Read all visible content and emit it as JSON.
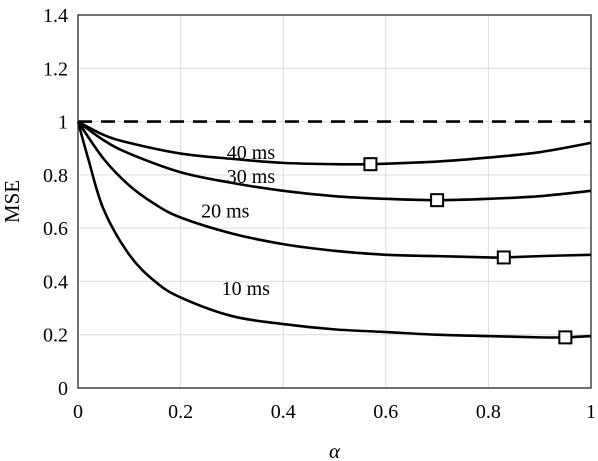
{
  "chart_data": {
    "type": "line",
    "xlabel": "α",
    "ylabel": "MSE",
    "xlim": [
      0,
      1
    ],
    "ylim": [
      0,
      1.4
    ],
    "x_ticks": [
      "0",
      "0.2",
      "0.4",
      "0.6",
      "0.8",
      "1"
    ],
    "y_ticks": [
      "0",
      "0.2",
      "0.4",
      "0.6",
      "0.8",
      "1",
      "1.2",
      "1.4"
    ],
    "grid": true,
    "reference_line": {
      "y": 1,
      "style": "dashed"
    },
    "series": [
      {
        "name": "10 ms",
        "x": [
          0,
          0.02,
          0.05,
          0.1,
          0.15,
          0.2,
          0.3,
          0.4,
          0.5,
          0.6,
          0.7,
          0.8,
          0.9,
          0.95,
          1.0
        ],
        "y": [
          1.0,
          0.86,
          0.67,
          0.5,
          0.4,
          0.34,
          0.27,
          0.24,
          0.22,
          0.21,
          0.2,
          0.195,
          0.19,
          0.19,
          0.195
        ],
        "label_at": [
          0.28,
          0.35
        ],
        "min_marker": [
          0.95,
          0.19
        ]
      },
      {
        "name": "20 ms",
        "x": [
          0,
          0.05,
          0.1,
          0.15,
          0.2,
          0.3,
          0.4,
          0.5,
          0.6,
          0.7,
          0.8,
          0.83,
          0.9,
          1.0
        ],
        "y": [
          1.0,
          0.86,
          0.76,
          0.69,
          0.64,
          0.58,
          0.54,
          0.515,
          0.5,
          0.495,
          0.49,
          0.49,
          0.495,
          0.5
        ],
        "label_at": [
          0.24,
          0.64
        ],
        "min_marker": [
          0.83,
          0.49
        ]
      },
      {
        "name": "30 ms",
        "x": [
          0,
          0.05,
          0.1,
          0.2,
          0.3,
          0.4,
          0.5,
          0.6,
          0.7,
          0.8,
          0.9,
          1.0
        ],
        "y": [
          1.0,
          0.93,
          0.88,
          0.81,
          0.77,
          0.74,
          0.72,
          0.71,
          0.705,
          0.71,
          0.72,
          0.74
        ],
        "label_at": [
          0.29,
          0.77
        ],
        "min_marker": [
          0.7,
          0.705
        ]
      },
      {
        "name": "40 ms",
        "x": [
          0,
          0.05,
          0.1,
          0.2,
          0.3,
          0.4,
          0.5,
          0.57,
          0.6,
          0.7,
          0.8,
          0.9,
          1.0
        ],
        "y": [
          1.0,
          0.95,
          0.92,
          0.88,
          0.86,
          0.845,
          0.84,
          0.84,
          0.842,
          0.85,
          0.865,
          0.885,
          0.92
        ],
        "label_at": [
          0.29,
          0.86
        ],
        "min_marker": [
          0.57,
          0.84
        ]
      }
    ]
  }
}
